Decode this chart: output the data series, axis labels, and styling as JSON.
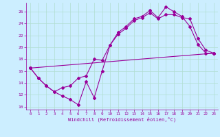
{
  "xlabel": "Windchill (Refroidissement éolien,°C)",
  "bg_color": "#cceeff",
  "grid_color": "#b0ddd0",
  "line_color": "#990099",
  "xlim": [
    -0.5,
    23.5
  ],
  "ylim": [
    9.5,
    27.5
  ],
  "xticks": [
    0,
    1,
    2,
    3,
    4,
    5,
    6,
    7,
    8,
    9,
    10,
    11,
    12,
    13,
    14,
    15,
    16,
    17,
    18,
    19,
    20,
    21,
    22,
    23
  ],
  "yticks": [
    10,
    12,
    14,
    16,
    18,
    20,
    22,
    24,
    26
  ],
  "line1_x": [
    0,
    1,
    2,
    3,
    4,
    5,
    6,
    7,
    8,
    9,
    10,
    11,
    12,
    13,
    14,
    15,
    16,
    17,
    18,
    19,
    20,
    21,
    22,
    23
  ],
  "line1_y": [
    16.5,
    14.8,
    13.5,
    12.5,
    11.8,
    11.2,
    10.3,
    14.2,
    11.5,
    16.0,
    20.4,
    22.5,
    23.5,
    24.8,
    25.2,
    26.2,
    25.0,
    26.8,
    26.0,
    25.2,
    23.5,
    20.5,
    19.0,
    19.0
  ],
  "line2_x": [
    0,
    1,
    2,
    3,
    4,
    5,
    6,
    7,
    8,
    9,
    10,
    11,
    12,
    13,
    14,
    15,
    16,
    17,
    18,
    19,
    20,
    21,
    22,
    23
  ],
  "line2_y": [
    16.5,
    14.8,
    13.5,
    12.5,
    13.2,
    13.5,
    14.8,
    15.2,
    18.0,
    17.8,
    20.4,
    22.2,
    23.2,
    24.5,
    25.0,
    25.8,
    24.8,
    25.5,
    25.5,
    25.0,
    24.8,
    21.5,
    19.5,
    19.0
  ],
  "line3_x": [
    0,
    23
  ],
  "line3_y": [
    16.5,
    19.0
  ],
  "marker": "D",
  "markersize": 2.0,
  "linewidth": 0.8
}
